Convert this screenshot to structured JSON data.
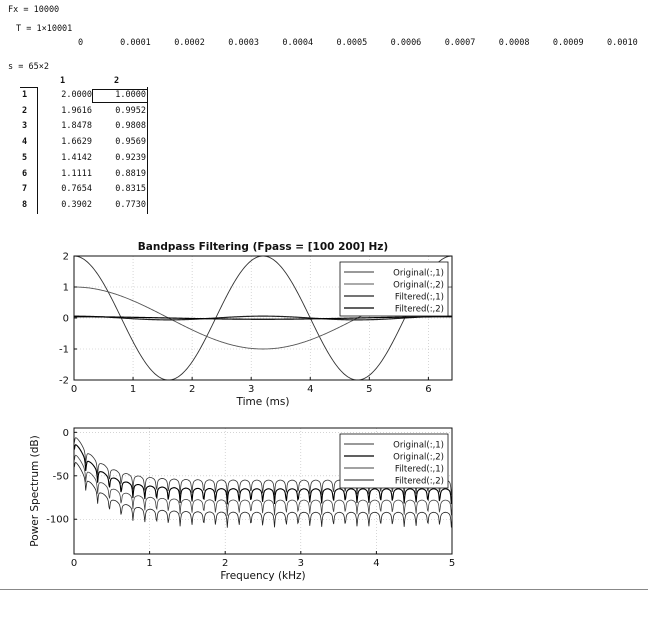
{
  "workspace": {
    "fs_line": "Fx = 10000",
    "t_line": "T = 1×10001",
    "t_values": [
      "0",
      "0.0001",
      "0.0002",
      "0.0003",
      "0.0004",
      "0.0005",
      "0.0006",
      "0.0007",
      "0.0008",
      "0.0009",
      "0.0010"
    ],
    "s_line": "s = 65×2"
  },
  "matrix": {
    "col_headers": [
      "1",
      "2"
    ],
    "row_headers": [
      "1",
      "2",
      "3",
      "4",
      "5",
      "6",
      "7",
      "8"
    ],
    "rows": [
      [
        "2.0000",
        "1.0000"
      ],
      [
        "1.9616",
        "0.9952"
      ],
      [
        "1.8478",
        "0.9808"
      ],
      [
        "1.6629",
        "0.9569"
      ],
      [
        "1.4142",
        "0.9239"
      ],
      [
        "1.1111",
        "0.8819"
      ],
      [
        "0.7654",
        "0.8315"
      ],
      [
        "0.3902",
        "0.7730"
      ]
    ]
  },
  "chart_data": [
    {
      "type": "line",
      "title": "Bandpass Filtering  (Fpass = [100 200] Hz)",
      "xlabel": "Time (ms)",
      "ylabel": "",
      "xlim": [
        0,
        6.4
      ],
      "ylim": [
        -2,
        2
      ],
      "xticks": [
        "0",
        "1",
        "2",
        "3",
        "4",
        "5",
        "6"
      ],
      "yticks": [
        "2",
        "1",
        "0",
        "-1",
        "-2"
      ],
      "legend_position": "top-right",
      "series": [
        {
          "name": "Original(:,1)",
          "color": "#333333",
          "amp": 2.0,
          "period_ms": 3.2
        },
        {
          "name": "Original(:,2)",
          "color": "#555555",
          "amp": 1.0,
          "period_ms": 6.4
        },
        {
          "name": "Filtered(:,1)",
          "color": "#222222",
          "amp": 0.06,
          "period_ms": 3.2
        },
        {
          "name": "Filtered(:,2)",
          "color": "#000000",
          "amp": 0.04,
          "period_ms": 6.4
        }
      ]
    },
    {
      "type": "line",
      "title": "",
      "xlabel": "Frequency (kHz)",
      "ylabel": "Power Spectrum (dB)",
      "xlim": [
        0,
        5
      ],
      "ylim": [
        -140,
        5
      ],
      "xticks": [
        "0",
        "1",
        "2",
        "3",
        "4",
        "5"
      ],
      "yticks": [
        "0",
        "-50",
        "-100"
      ],
      "legend_position": "top-right",
      "series": [
        {
          "name": "Original(:,1)",
          "color": "#333333",
          "peak_db": 0,
          "floor_db": -55
        },
        {
          "name": "Original(:,2)",
          "color": "#000000",
          "peak_db": -8,
          "floor_db": -65
        },
        {
          "name": "Filtered(:,1)",
          "color": "#444444",
          "peak_db": -20,
          "floor_db": -78
        },
        {
          "name": "Filtered(:,2)",
          "color": "#222222",
          "peak_db": -28,
          "floor_db": -92
        }
      ]
    }
  ]
}
